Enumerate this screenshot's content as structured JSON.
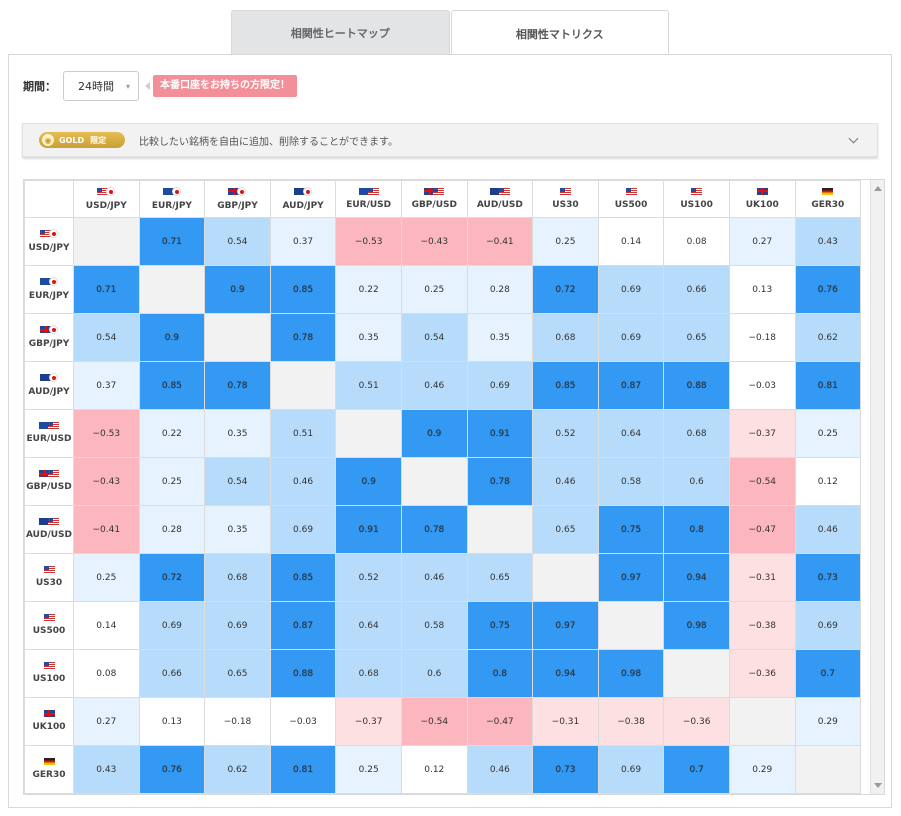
{
  "tabs": [
    {
      "label": "相関性ヒートマップ",
      "active": false
    },
    {
      "label": "相関性マトリクス",
      "active": true
    }
  ],
  "period": {
    "label": "期間：",
    "value": "24時間",
    "promo": "本番口座をお持ちの方限定！"
  },
  "gold": {
    "badge": "GOLD",
    "badge_sub": "限定",
    "description": "比較したい銘柄を自由に追加、削除することができます。"
  },
  "colors": {
    "strong_pos": "#3399f3",
    "mid_pos": "#b7dcfb",
    "weak_pos": "#e6f2fd",
    "weak_neg": "#fde0e2",
    "strong_neg": "#fbb7bd"
  },
  "symbols": [
    {
      "name": "USD/JPY",
      "flags": [
        "us",
        "jp"
      ]
    },
    {
      "name": "EUR/JPY",
      "flags": [
        "eu",
        "jp"
      ]
    },
    {
      "name": "GBP/JPY",
      "flags": [
        "gb",
        "jp"
      ]
    },
    {
      "name": "AUD/JPY",
      "flags": [
        "au",
        "jp"
      ]
    },
    {
      "name": "EUR/USD",
      "flags": [
        "eu",
        "us"
      ]
    },
    {
      "name": "GBP/USD",
      "flags": [
        "gb",
        "us"
      ]
    },
    {
      "name": "AUD/USD",
      "flags": [
        "au",
        "us"
      ]
    },
    {
      "name": "US30",
      "flags": [
        "us"
      ]
    },
    {
      "name": "US500",
      "flags": [
        "us"
      ]
    },
    {
      "name": "US100",
      "flags": [
        "us"
      ]
    },
    {
      "name": "UK100",
      "flags": [
        "gb"
      ]
    },
    {
      "name": "GER30",
      "flags": [
        "de"
      ]
    }
  ],
  "matrix": [
    [
      "",
      "0.71",
      "0.54",
      "0.37",
      "-0.53",
      "-0.43",
      "-0.41",
      "0.25",
      "0.14",
      "0.08",
      "0.27",
      "0.43"
    ],
    [
      "0.71",
      "",
      "0.9",
      "0.85",
      "0.22",
      "0.25",
      "0.28",
      "0.72",
      "0.69",
      "0.66",
      "0.13",
      "0.76"
    ],
    [
      "0.54",
      "0.9",
      "",
      "0.78",
      "0.35",
      "0.54",
      "0.35",
      "0.68",
      "0.69",
      "0.65",
      "-0.18",
      "0.62"
    ],
    [
      "0.37",
      "0.85",
      "0.78",
      "",
      "0.51",
      "0.46",
      "0.69",
      "0.85",
      "0.87",
      "0.88",
      "-0.03",
      "0.81"
    ],
    [
      "-0.53",
      "0.22",
      "0.35",
      "0.51",
      "",
      "0.9",
      "0.91",
      "0.52",
      "0.64",
      "0.68",
      "-0.37",
      "0.25"
    ],
    [
      "-0.43",
      "0.25",
      "0.54",
      "0.46",
      "0.9",
      "",
      "0.78",
      "0.46",
      "0.58",
      "0.6",
      "-0.54",
      "0.12"
    ],
    [
      "-0.41",
      "0.28",
      "0.35",
      "0.69",
      "0.91",
      "0.78",
      "",
      "0.65",
      "0.75",
      "0.8",
      "-0.47",
      "0.46"
    ],
    [
      "0.25",
      "0.72",
      "0.68",
      "0.85",
      "0.52",
      "0.46",
      "0.65",
      "",
      "0.97",
      "0.94",
      "-0.31",
      "0.73"
    ],
    [
      "0.14",
      "0.69",
      "0.69",
      "0.87",
      "0.64",
      "0.58",
      "0.75",
      "0.97",
      "",
      "0.98",
      "-0.38",
      "0.69"
    ],
    [
      "0.08",
      "0.66",
      "0.65",
      "0.88",
      "0.68",
      "0.6",
      "0.8",
      "0.94",
      "0.98",
      "",
      "-0.36",
      "0.7"
    ],
    [
      "0.27",
      "0.13",
      "-0.18",
      "-0.03",
      "-0.37",
      "-0.54",
      "-0.47",
      "-0.31",
      "-0.38",
      "-0.36",
      "",
      "0.29"
    ],
    [
      "0.43",
      "0.76",
      "0.62",
      "0.81",
      "0.25",
      "0.12",
      "0.46",
      "0.73",
      "0.69",
      "0.7",
      "0.29",
      ""
    ]
  ]
}
